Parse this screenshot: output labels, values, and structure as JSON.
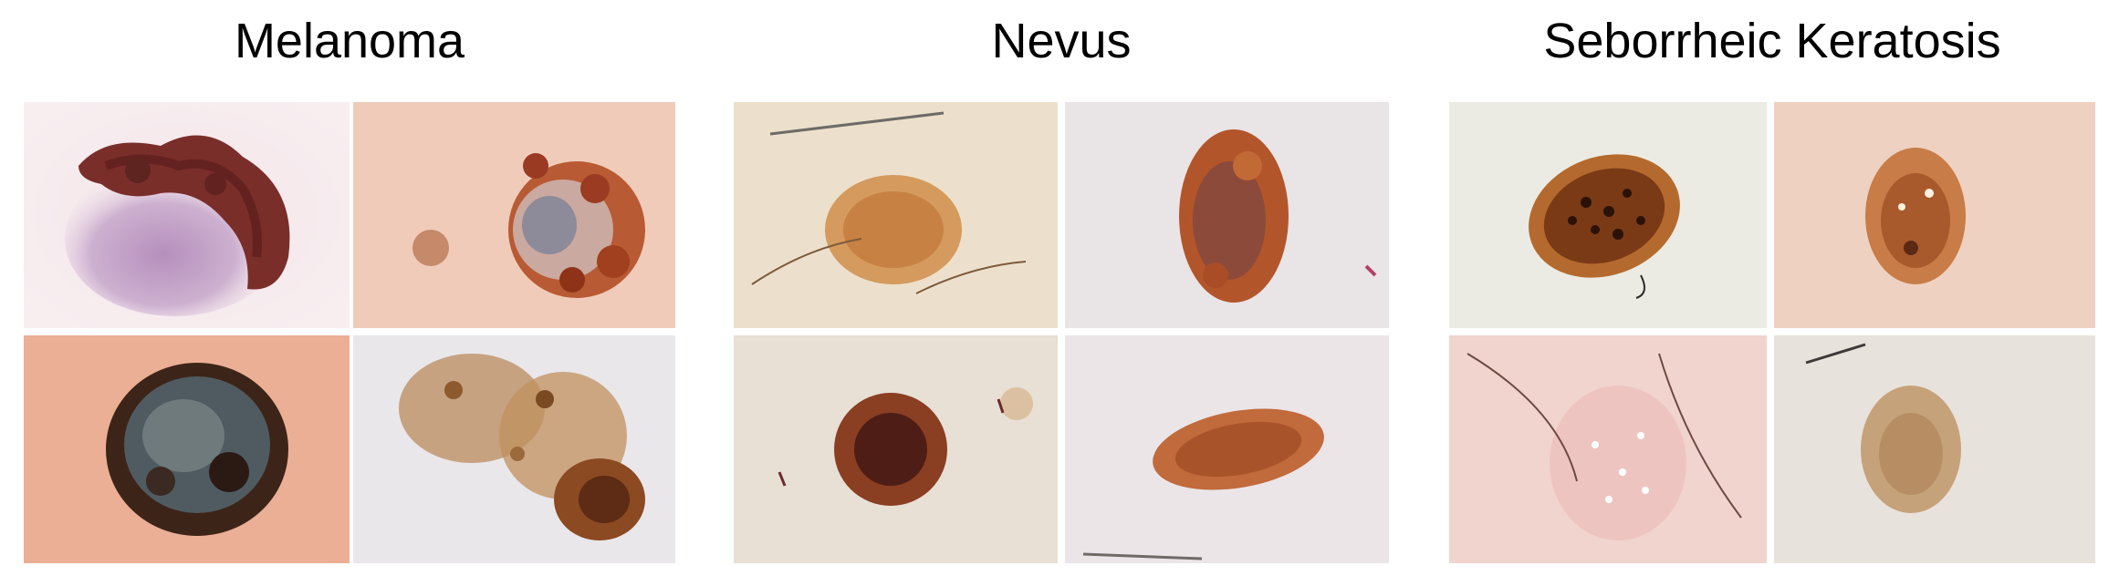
{
  "figure": {
    "groups": [
      {
        "title": "Melanoma"
      },
      {
        "title": "Nevus"
      },
      {
        "title": "Seborrheic Keratosis"
      }
    ]
  }
}
